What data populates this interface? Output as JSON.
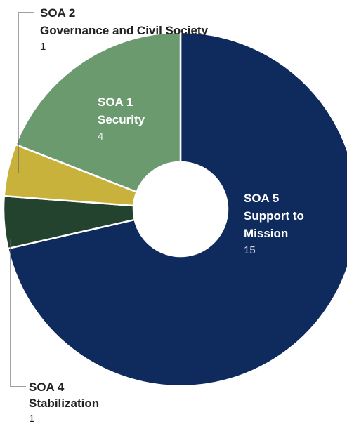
{
  "chart_data": {
    "type": "pie",
    "title": "",
    "legend": "none",
    "slices": [
      {
        "label_lines": [
          "SOA 5",
          "Support to",
          "Mission"
        ],
        "value": 15,
        "value_text": "15",
        "color": "#0f2a5c",
        "label_color": "#ffffff",
        "value_color": "#d9dde6"
      },
      {
        "label_lines": [
          "SOA 4",
          "Stabilization"
        ],
        "value": 1,
        "value_text": "1",
        "color": "#23432f",
        "label_color": "#222222",
        "value_color": "#222222"
      },
      {
        "label_lines": [
          "SOA 2",
          "Governance and Civil Society"
        ],
        "value": 1,
        "value_text": "1",
        "color": "#c9b23c",
        "label_color": "#222222",
        "value_color": "#222222"
      },
      {
        "label_lines": [
          "SOA 1",
          "Security"
        ],
        "value": 4,
        "value_text": "4",
        "color": "#6c9a6f",
        "label_color": "#ffffff",
        "value_color": "#e4ece4"
      }
    ]
  }
}
